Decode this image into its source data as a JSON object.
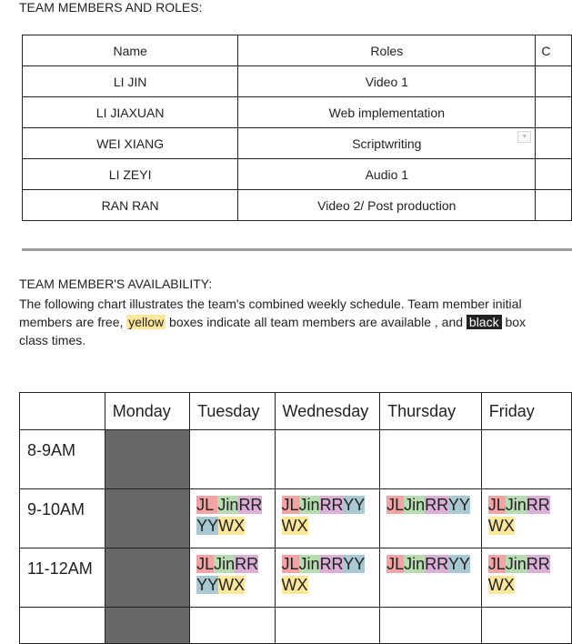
{
  "roles_section": {
    "heading": "TEAM MEMBERS AND ROLES:",
    "columns": [
      "Name",
      "Roles",
      "C"
    ],
    "rows": [
      {
        "name": "LI JIN",
        "role": "Video 1"
      },
      {
        "name": "LI JIAXUAN",
        "role": "Web implementation"
      },
      {
        "name": "WEI XIANG",
        "role": "Scriptwriting"
      },
      {
        "name": "LI ZEYI",
        "role": "Audio 1"
      },
      {
        "name": "RAN RAN",
        "role": "Video 2/ Post production"
      }
    ],
    "dropdown_icon": "chevron-down-icon"
  },
  "availability_section": {
    "heading": "TEAM MEMBER'S AVAILABILITY:",
    "line1": "The following chart illustrates the team's combined weekly schedule. Team member initial",
    "line2_a": "members are free, ",
    "line2_yellow": "yellow",
    "line2_b": " boxes indicate all team members are available , and ",
    "line2_black": "black",
    "line2_c": " box",
    "line3": "class times."
  },
  "schedule": {
    "days": [
      "Monday",
      "Tuesday",
      "Wednesday",
      "Thursday",
      "Friday"
    ],
    "times": [
      "8-9AM",
      "9-10AM",
      "11-12AM"
    ],
    "initials": {
      "jl": "JL",
      "jin": "Jin",
      "rr": "RR",
      "yy": "YY",
      "wx": "WX"
    },
    "jl_spaced": "JL ",
    "colors": {
      "jl": "#f2a3a3",
      "jin": "#b7dcb1",
      "rr": "#dab0d6",
      "yy": "#a9c9d2",
      "wx": "#fde79a",
      "class_time": "#686868"
    }
  }
}
